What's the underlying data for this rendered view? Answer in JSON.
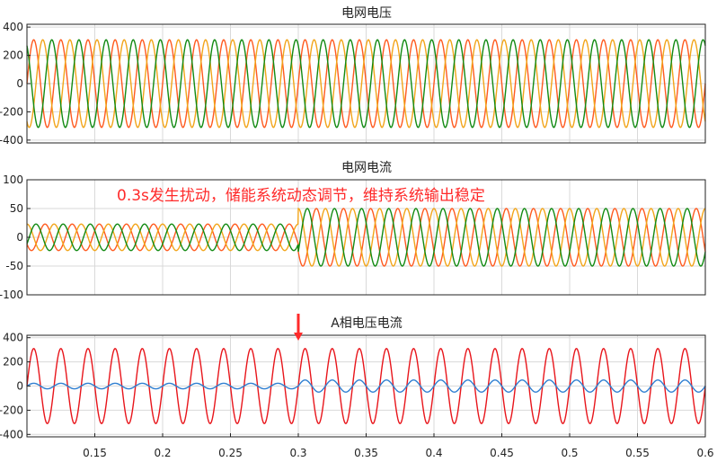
{
  "chart_data": [
    {
      "type": "line",
      "title": "电网电压",
      "xlim": [
        0.1,
        0.6
      ],
      "ylim": [
        -420,
        420
      ],
      "yticks": [
        -400,
        -200,
        0,
        200,
        400
      ],
      "grid": true,
      "series": [
        {
          "color": "#ff5a1f",
          "amplitude": 310,
          "frequency_hz": 50,
          "phase_deg": 0
        },
        {
          "color": "#f2a51a",
          "amplitude": 310,
          "frequency_hz": 50,
          "phase_deg": -120
        },
        {
          "color": "#128a12",
          "amplitude": 310,
          "frequency_hz": 50,
          "phase_deg": 120
        }
      ]
    },
    {
      "type": "line",
      "title": "电网电流",
      "xlim": [
        0.1,
        0.6
      ],
      "ylim": [
        -100,
        100
      ],
      "yticks": [
        -100,
        -50,
        0,
        50,
        100
      ],
      "grid": true,
      "annotation": "0.3s发生扰动，储能系统动态调节，维持系统输出稳定",
      "series": [
        {
          "color": "#ff5a1f",
          "amplitude_before": 23,
          "amplitude_after": 50,
          "change_time": 0.3,
          "frequency_hz": 50,
          "phase_deg": 210
        },
        {
          "color": "#f2a51a",
          "amplitude_before": 23,
          "amplitude_after": 50,
          "change_time": 0.3,
          "frequency_hz": 50,
          "phase_deg": 90
        },
        {
          "color": "#128a12",
          "amplitude_before": 23,
          "amplitude_after": 50,
          "change_time": 0.3,
          "frequency_hz": 50,
          "phase_deg": -30
        }
      ]
    },
    {
      "type": "line",
      "title": "A相电压电流",
      "xlim": [
        0.1,
        0.6
      ],
      "ylim": [
        -420,
        420
      ],
      "yticks": [
        -400,
        -200,
        0,
        200,
        400
      ],
      "xticks": [
        0.15,
        0.2,
        0.25,
        0.3,
        0.35,
        0.4,
        0.45,
        0.5,
        0.55,
        0.6
      ],
      "xtick_labels": [
        "0.15",
        "0.2",
        "0.25",
        "0.3",
        "0.35",
        "0.4",
        "0.45",
        "0.5",
        "0.55",
        "0.6"
      ],
      "grid": true,
      "marker": {
        "x": 0.3,
        "color": "#ff2a2a"
      },
      "series": [
        {
          "color": "#e8151b",
          "amplitude": 310,
          "frequency_hz": 50,
          "phase_deg": 0
        },
        {
          "color": "#2f7fd1",
          "amplitude_before": 23,
          "amplitude_after": 50,
          "change_time": 0.3,
          "frequency_hz": 50,
          "phase_deg": 0
        }
      ]
    }
  ]
}
